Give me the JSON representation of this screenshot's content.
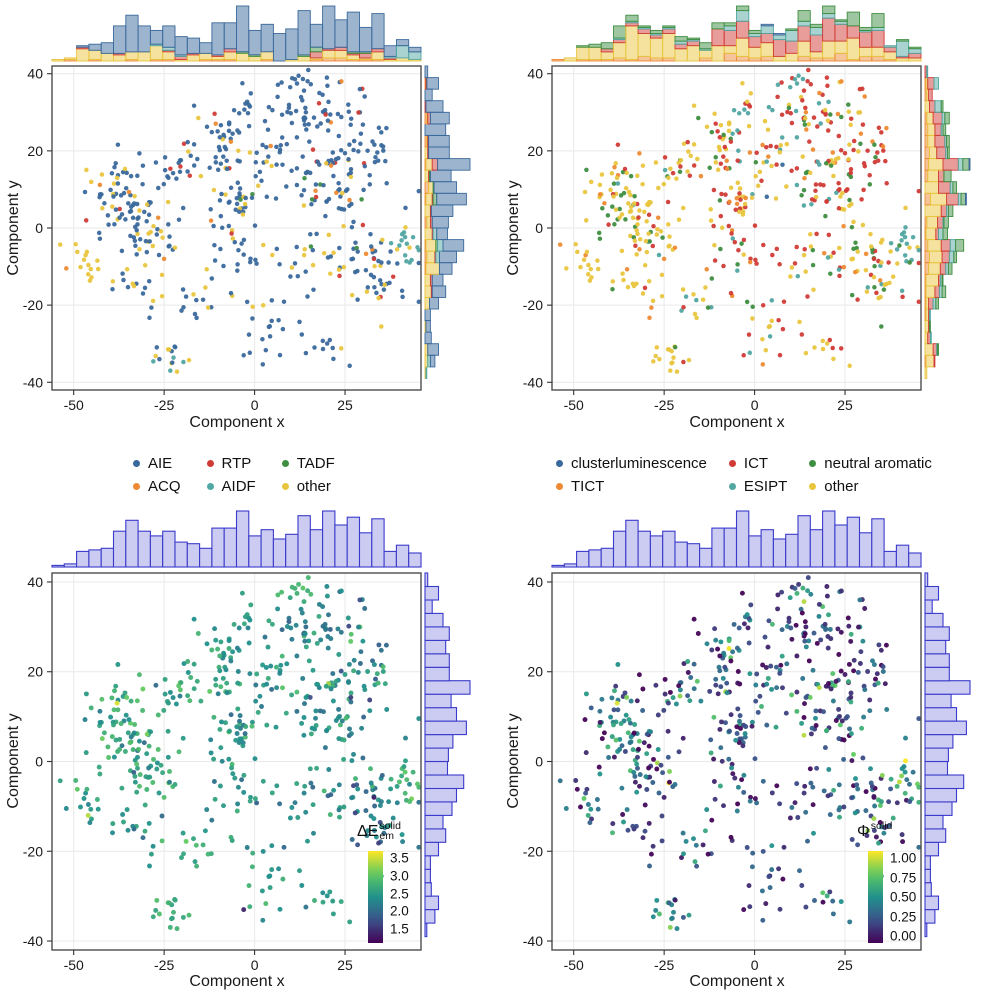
{
  "figure": {
    "description": "Four t-SNE component maps of luminescent molecules with marginal histograms",
    "background": "#ffffff",
    "panel_border_color": "#4d4d4d",
    "gridline_color": "#e9e9e9",
    "tick_color": "#333333",
    "tick_label_color": "#1a1a1a"
  },
  "chart_data": {
    "type": "scatter",
    "xlabel": "Component x",
    "ylabel": "Component y",
    "x_ticks": [
      -50,
      -25,
      0,
      25
    ],
    "y_ticks": [
      40,
      20,
      0,
      -20,
      -40
    ],
    "xlim": [
      -56,
      46
    ],
    "ylim": [
      -42,
      42
    ],
    "marginals": "histogram",
    "n_points_approx": 600,
    "panels": [
      {
        "id": "top-left",
        "color_by": "photophysics_class",
        "legend": [
          {
            "label": "AIE",
            "color": "#3a699c"
          },
          {
            "label": "ACQ",
            "color": "#ee8a33"
          },
          {
            "label": "RTP",
            "color": "#d13b36"
          },
          {
            "label": "AIDF",
            "color": "#51a7a2"
          },
          {
            "label": "TADF",
            "color": "#3e8e41"
          },
          {
            "label": "other",
            "color": "#e9c53e"
          }
        ],
        "hist_stack_order": [
          1,
          5,
          2,
          4,
          3,
          0
        ]
      },
      {
        "id": "top-right",
        "color_by": "mechanism_class",
        "legend": [
          {
            "label": "clusterluminescence",
            "color": "#3a699c"
          },
          {
            "label": "TICT",
            "color": "#ee8a33"
          },
          {
            "label": "ICT",
            "color": "#d13b36"
          },
          {
            "label": "ESIPT",
            "color": "#51a7a2"
          },
          {
            "label": "neutral aromatic",
            "color": "#3e8e41"
          },
          {
            "label": "other",
            "color": "#e9c53e"
          }
        ],
        "hist_stack_order": [
          1,
          5,
          2,
          3,
          4,
          0
        ]
      },
      {
        "id": "bottom-left",
        "color_by": "delta_E_em_solid",
        "colorbar": {
          "prefix": "ΔE",
          "sub": "em",
          "sup": "solid",
          "tick_values": [
            3.5,
            3.0,
            2.5,
            2.0,
            1.5
          ],
          "tick_labels": [
            "3.5",
            "3.0",
            "2.5",
            "2.0",
            "1.5"
          ],
          "domain_bottom_top": [
            1.1,
            3.7
          ]
        }
      },
      {
        "id": "bottom-right",
        "color_by": "phi_solid",
        "colorbar": {
          "prefix": "Φ",
          "sub": "",
          "sup": "solid",
          "tick_values": [
            1.0,
            0.75,
            0.5,
            0.25,
            0.0
          ],
          "tick_labels": [
            "1.00",
            "0.75",
            "0.50",
            "0.25",
            "0.00"
          ],
          "domain_bottom_top": [
            -0.09,
            1.09
          ]
        }
      }
    ],
    "viridis_anchors": [
      "#440154",
      "#3b528b",
      "#21918c",
      "#5ec962",
      "#fde725"
    ],
    "marginal_hist_plain": {
      "fill": "#ccccf3",
      "stroke": "#3a3acb"
    },
    "hist_fill_alpha": 0.5,
    "cluster_fields": "[cx, cy, sx, sy, n, weights_class1(AIE,ACQ,RTP,AIDF,TADF,other), weights_class2(clusterluminescence,TICT,ICT,ESIPT,neutral aromatic,other), [dE_mean,dE_sd], [phi_mean,phi_sd]]",
    "clusters": [
      [
        -47,
        -9,
        2.5,
        2.5,
        14,
        [
          0.15,
          0.05,
          0,
          0,
          0,
          0.8
        ],
        [
          0,
          0.1,
          0,
          0,
          0.05,
          0.85
        ],
        [
          2.6,
          0.2
        ],
        [
          0.35,
          0.25
        ]
      ],
      [
        -35,
        8,
        5.5,
        5.5,
        72,
        [
          0.72,
          0.05,
          0.02,
          0,
          0.02,
          0.19
        ],
        [
          0.04,
          0.1,
          0.08,
          0.05,
          0.22,
          0.51
        ],
        [
          2.6,
          0.28
        ],
        [
          0.33,
          0.25
        ]
      ],
      [
        -27,
        -2,
        4,
        3.5,
        26,
        [
          0.5,
          0.08,
          0,
          0,
          0.02,
          0.4
        ],
        [
          0.02,
          0.08,
          0.1,
          0.05,
          0.15,
          0.6
        ],
        [
          2.6,
          0.25
        ],
        [
          0.3,
          0.22
        ]
      ],
      [
        -31,
        -14,
        4.5,
        3,
        16,
        [
          0.6,
          0.05,
          0,
          0,
          0,
          0.35
        ],
        [
          0,
          0.1,
          0.15,
          0,
          0.15,
          0.6
        ],
        [
          2.5,
          0.25
        ],
        [
          0.28,
          0.2
        ]
      ],
      [
        -24,
        -33,
        2.3,
        1.8,
        16,
        [
          0.5,
          0,
          0,
          0.06,
          0,
          0.44
        ],
        [
          0,
          0.05,
          0.1,
          0.1,
          0.05,
          0.7
        ],
        [
          2.75,
          0.15
        ],
        [
          0.45,
          0.25
        ]
      ],
      [
        -10,
        22,
        4.5,
        4.5,
        40,
        [
          0.88,
          0.02,
          0.04,
          0,
          0,
          0.06
        ],
        [
          0.02,
          0.1,
          0.28,
          0.14,
          0.12,
          0.34
        ],
        [
          2.5,
          0.25
        ],
        [
          0.3,
          0.22
        ]
      ],
      [
        -5,
        7,
        3,
        2.5,
        30,
        [
          0.68,
          0.05,
          0,
          0,
          0.02,
          0.25
        ],
        [
          0,
          0.1,
          0.3,
          0.05,
          0.1,
          0.45
        ],
        [
          2.45,
          0.25
        ],
        [
          0.3,
          0.22
        ]
      ],
      [
        -4,
        -6,
        5,
        4.5,
        22,
        [
          0.75,
          0,
          0.05,
          0,
          0,
          0.2
        ],
        [
          0,
          0.1,
          0.4,
          0.05,
          0.1,
          0.35
        ],
        [
          2.4,
          0.25
        ],
        [
          0.25,
          0.2
        ]
      ],
      [
        3,
        -26,
        5.5,
        5,
        18,
        [
          0.85,
          0,
          0,
          0,
          0,
          0.15
        ],
        [
          0,
          0.05,
          0.3,
          0.1,
          0.1,
          0.45
        ],
        [
          2.5,
          0.25
        ],
        [
          0.3,
          0.22
        ]
      ],
      [
        11,
        38,
        2.2,
        1.4,
        12,
        [
          0.9,
          0.1,
          0,
          0,
          0,
          0
        ],
        [
          0,
          0.05,
          0.75,
          0.2,
          0,
          0
        ],
        [
          2.8,
          0.15
        ],
        [
          0.45,
          0.25
        ]
      ],
      [
        14,
        30,
        4.5,
        3.2,
        26,
        [
          0.92,
          0,
          0,
          0,
          0,
          0.08
        ],
        [
          0,
          0.1,
          0.5,
          0.05,
          0.1,
          0.25
        ],
        [
          2.35,
          0.3
        ],
        [
          0.2,
          0.2
        ]
      ],
      [
        25,
        32,
        4.5,
        3,
        22,
        [
          0.88,
          0.04,
          0.04,
          0,
          0,
          0.04
        ],
        [
          0,
          0.1,
          0.5,
          0.05,
          0.15,
          0.2
        ],
        [
          2.35,
          0.3
        ],
        [
          0.25,
          0.22
        ]
      ],
      [
        22,
        12,
        5.5,
        5,
        62,
        [
          0.8,
          0.02,
          0.03,
          0,
          0.04,
          0.11
        ],
        [
          0.01,
          0.09,
          0.4,
          0.05,
          0.13,
          0.32
        ],
        [
          2.3,
          0.3
        ],
        [
          0.25,
          0.22
        ]
      ],
      [
        30,
        -6,
        5.5,
        4.5,
        40,
        [
          0.68,
          0.02,
          0.05,
          0,
          0.05,
          0.2
        ],
        [
          0,
          0.06,
          0.3,
          0.1,
          0.14,
          0.4
        ],
        [
          2.2,
          0.3
        ],
        [
          0.3,
          0.25
        ]
      ],
      [
        43,
        -4,
        2,
        2.6,
        16,
        [
          0.2,
          0,
          0,
          0.68,
          0.06,
          0.06
        ],
        [
          0,
          0.05,
          0.05,
          0.65,
          0.2,
          0.05
        ],
        [
          2.7,
          0.2
        ],
        [
          0.55,
          0.25
        ]
      ],
      [
        35,
        -16,
        4,
        3,
        18,
        [
          0.6,
          0,
          0.1,
          0,
          0.05,
          0.25
        ],
        [
          0,
          0.05,
          0.3,
          0.05,
          0.2,
          0.4
        ],
        [
          2.1,
          0.3
        ],
        [
          0.25,
          0.22
        ]
      ],
      [
        12,
        -9,
        5,
        4.5,
        20,
        [
          0.8,
          0,
          0,
          0,
          0,
          0.2
        ],
        [
          0,
          0.05,
          0.5,
          0.05,
          0.1,
          0.3
        ],
        [
          2.4,
          0.28
        ],
        [
          0.2,
          0.18
        ]
      ],
      [
        -14,
        -20,
        4,
        3.5,
        12,
        [
          0.5,
          0.05,
          0,
          0,
          0,
          0.45
        ],
        [
          0,
          0.05,
          0.2,
          0.2,
          0,
          0.55
        ],
        [
          2.6,
          0.2
        ],
        [
          0.3,
          0.2
        ]
      ],
      [
        5,
        20,
        4,
        3.5,
        18,
        [
          0.85,
          0.05,
          0,
          0,
          0,
          0.1
        ],
        [
          0,
          0.1,
          0.45,
          0.15,
          0.1,
          0.2
        ],
        [
          2.4,
          0.25
        ],
        [
          0.3,
          0.22
        ]
      ],
      [
        -20,
        15,
        3,
        3,
        14,
        [
          0.8,
          0,
          0.1,
          0,
          0,
          0.1
        ],
        [
          0,
          0.1,
          0.2,
          0,
          0.2,
          0.5
        ],
        [
          2.6,
          0.22
        ],
        [
          0.35,
          0.22
        ]
      ],
      [
        33,
        20,
        4,
        3.5,
        20,
        [
          0.85,
          0,
          0,
          0,
          0,
          0.15
        ],
        [
          0,
          0.1,
          0.45,
          0,
          0.15,
          0.3
        ],
        [
          2.25,
          0.28
        ],
        [
          0.2,
          0.2
        ]
      ],
      [
        18,
        -30,
        4,
        2.8,
        10,
        [
          0.7,
          0,
          0,
          0,
          0,
          0.3
        ],
        [
          0,
          0,
          0.4,
          0,
          0,
          0.6
        ],
        [
          2.4,
          0.2
        ],
        [
          0.3,
          0.2
        ]
      ],
      [
        -2,
        31,
        3,
        2.4,
        14,
        [
          0.95,
          0,
          0,
          0,
          0,
          0.05
        ],
        [
          0,
          0,
          0.4,
          0.3,
          0,
          0.3
        ],
        [
          2.5,
          0.2
        ],
        [
          0.3,
          0.2
        ]
      ],
      [
        0,
        2,
        24,
        17,
        40,
        [
          0.7,
          0.05,
          0.02,
          0.01,
          0.02,
          0.2
        ],
        [
          0.01,
          0.08,
          0.3,
          0.08,
          0.13,
          0.4
        ],
        [
          2.45,
          0.3
        ],
        [
          0.3,
          0.25
        ]
      ]
    ],
    "extra_point_fields": "[x, y, class1_index, class2_index, dE, phi]",
    "extra_points": [
      [
        -38,
        13,
        5,
        5,
        3.55,
        0.95
      ],
      [
        -46,
        -12,
        5,
        5,
        3.4,
        0.6
      ],
      [
        -25,
        -8,
        1,
        1,
        2.9,
        0.1
      ],
      [
        33,
        -8,
        2,
        2,
        1.35,
        0.05
      ],
      [
        -3,
        -33,
        0,
        2,
        1.4,
        0.03
      ],
      [
        20,
        39,
        0,
        2,
        2.3,
        0.1
      ],
      [
        24,
        38,
        1,
        1,
        2.4,
        0.15
      ]
    ]
  }
}
